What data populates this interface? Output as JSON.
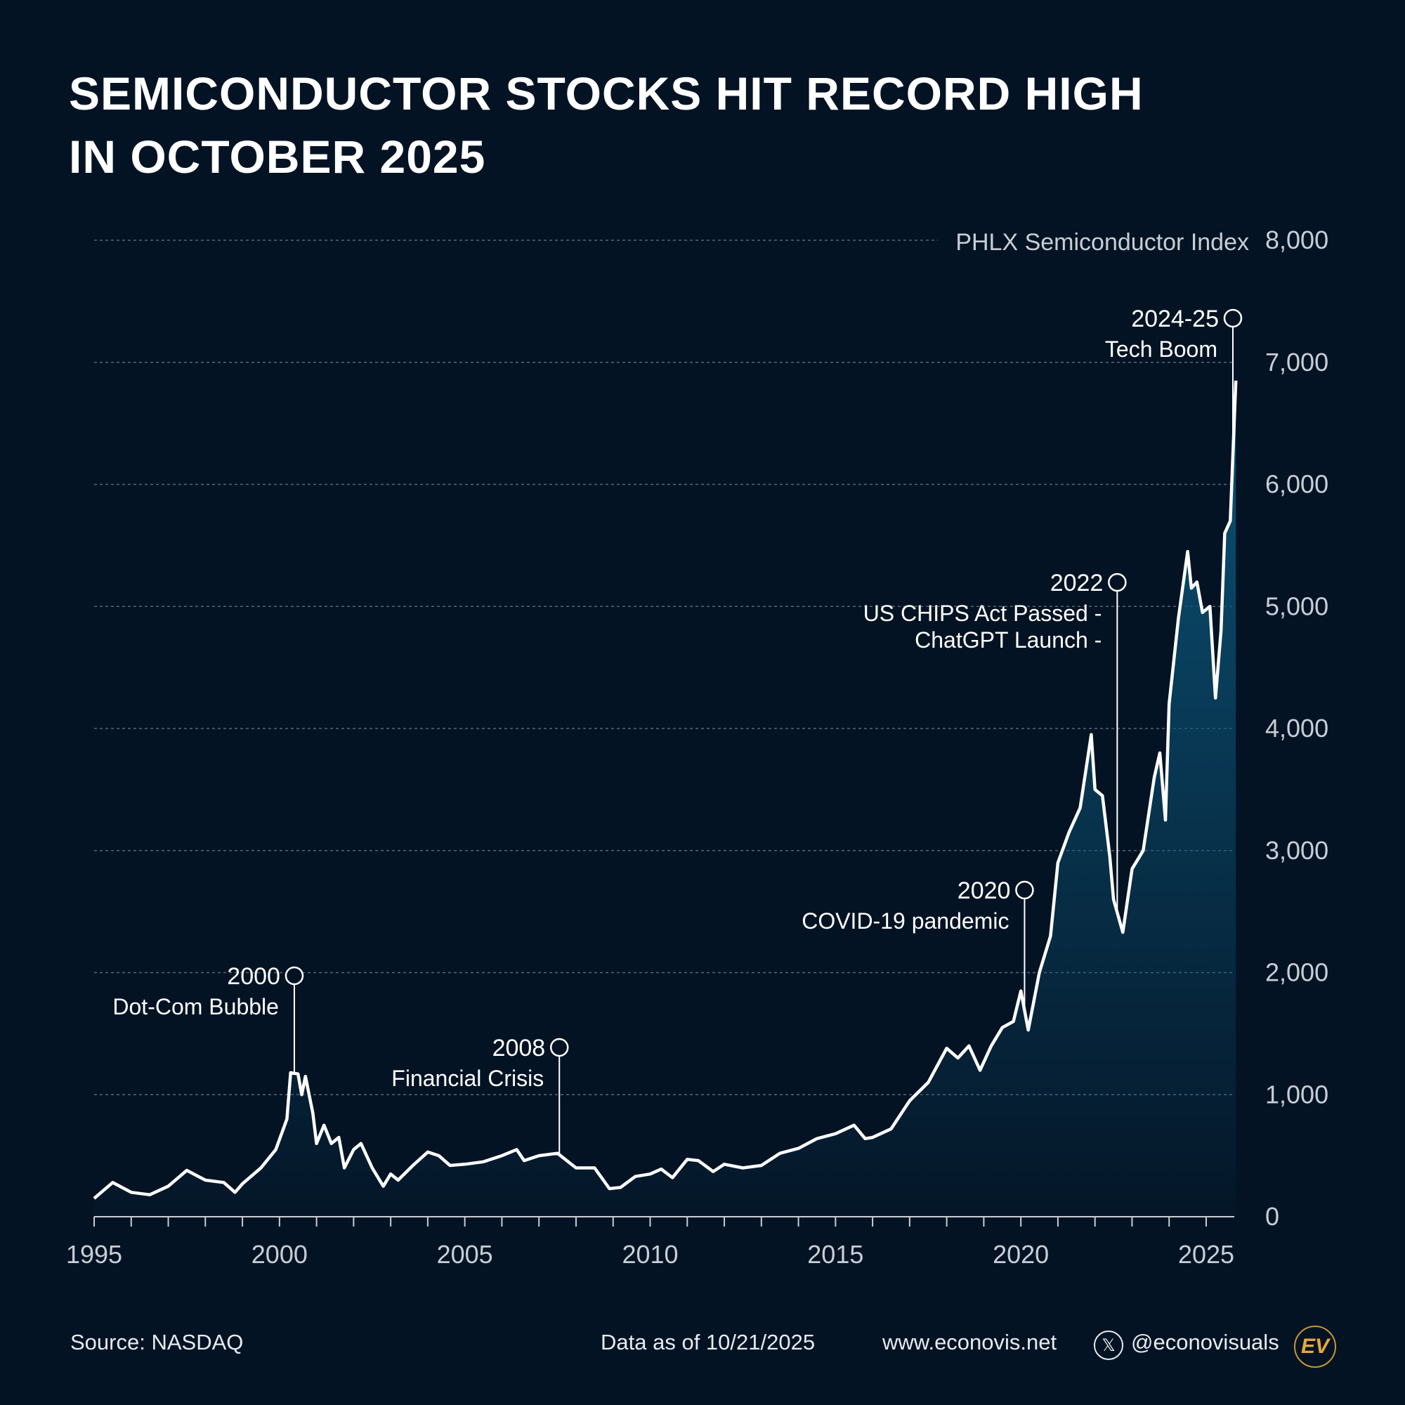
{
  "title_lines": [
    "SEMICONDUCTOR STOCKS HIT RECORD HIGH",
    "IN OCTOBER 2025"
  ],
  "chart_data": {
    "type": "area",
    "series_label": "PHLX Semiconductor Index",
    "ylim": [
      0,
      8000
    ],
    "xlim": [
      1995,
      2025.8
    ],
    "yticks": [
      0,
      1000,
      2000,
      3000,
      4000,
      5000,
      6000,
      7000,
      8000
    ],
    "ytick_labels": [
      "0",
      "1,000",
      "2,000",
      "3,000",
      "4,000",
      "5,000",
      "6,000",
      "7,000",
      "8,000"
    ],
    "xticks": [
      1995,
      2000,
      2005,
      2010,
      2015,
      2020,
      2025
    ],
    "xtick_labels": [
      "1995",
      "2000",
      "2005",
      "2010",
      "2015",
      "2020",
      "2025"
    ],
    "grid": "horizontal dashed",
    "line_color": "#ffffff",
    "fill_color": "#0b5275",
    "x": [
      1995.0,
      1995.5,
      1996.0,
      1996.5,
      1997.0,
      1997.5,
      1998.0,
      1998.5,
      1998.8,
      1999.0,
      1999.5,
      1999.9,
      2000.2,
      2000.3,
      2000.5,
      2000.6,
      2000.7,
      2000.8,
      2000.9,
      2001.0,
      2001.2,
      2001.4,
      2001.6,
      2001.75,
      2002.0,
      2002.2,
      2002.5,
      2002.8,
      2003.0,
      2003.2,
      2003.6,
      2004.0,
      2004.3,
      2004.6,
      2005.0,
      2005.5,
      2006.0,
      2006.4,
      2006.6,
      2007.0,
      2007.5,
      2008.0,
      2008.5,
      2008.9,
      2009.2,
      2009.6,
      2010.0,
      2010.3,
      2010.6,
      2011.0,
      2011.3,
      2011.7,
      2012.0,
      2012.5,
      2013.0,
      2013.5,
      2014.0,
      2014.5,
      2015.0,
      2015.5,
      2015.8,
      2016.0,
      2016.5,
      2017.0,
      2017.5,
      2018.0,
      2018.3,
      2018.6,
      2018.9,
      2019.2,
      2019.5,
      2019.8,
      2020.0,
      2020.2,
      2020.5,
      2020.8,
      2021.0,
      2021.3,
      2021.6,
      2021.9,
      2022.0,
      2022.2,
      2022.4,
      2022.5,
      2022.75,
      2023.0,
      2023.3,
      2023.6,
      2023.75,
      2023.9,
      2024.0,
      2024.25,
      2024.5,
      2024.6,
      2024.75,
      2024.9,
      2025.1,
      2025.25,
      2025.4,
      2025.5,
      2025.65,
      2025.8
    ],
    "values": [
      150,
      280,
      200,
      180,
      250,
      380,
      300,
      280,
      200,
      270,
      400,
      550,
      800,
      1180,
      1170,
      1000,
      1150,
      1000,
      850,
      600,
      750,
      600,
      650,
      400,
      550,
      600,
      400,
      250,
      350,
      300,
      420,
      530,
      500,
      420,
      430,
      450,
      500,
      550,
      460,
      500,
      520,
      400,
      400,
      230,
      240,
      330,
      350,
      390,
      320,
      470,
      460,
      370,
      430,
      400,
      420,
      520,
      560,
      640,
      680,
      750,
      640,
      650,
      720,
      950,
      1100,
      1380,
      1300,
      1400,
      1200,
      1400,
      1550,
      1600,
      1850,
      1530,
      2000,
      2300,
      2900,
      3150,
      3350,
      3950,
      3500,
      3450,
      2950,
      2600,
      2330,
      2850,
      3000,
      3600,
      3800,
      3250,
      4200,
      4900,
      5450,
      5150,
      5200,
      4950,
      5000,
      4250,
      4800,
      5600,
      5700,
      6850
    ],
    "annotations": [
      {
        "year_label": "2000",
        "text": [
          "Dot-Com Bubble"
        ],
        "x": 2000.4
      },
      {
        "year_label": "2008",
        "text": [
          "Financial Crisis"
        ],
        "x": 2007.55
      },
      {
        "year_label": "2020",
        "text": [
          "COVID-19 pandemic"
        ],
        "x": 2020.1
      },
      {
        "year_label": "2022",
        "text": [
          "US CHIPS Act Passed -",
          "ChatGPT Launch -"
        ],
        "x": 2022.6
      },
      {
        "year_label": "2024-25",
        "text": [
          "Tech Boom"
        ],
        "x": 2025.72
      }
    ]
  },
  "footer": {
    "source": "Source: NASDAQ",
    "data_as_of": "Data as of 10/21/2025",
    "website": "www.econovis.net",
    "handle": "@econovisuals",
    "x_icon": "x-logo-icon",
    "logo": "EV"
  },
  "colors": {
    "background": "#041324",
    "accent_logo": "#e8a93a"
  }
}
